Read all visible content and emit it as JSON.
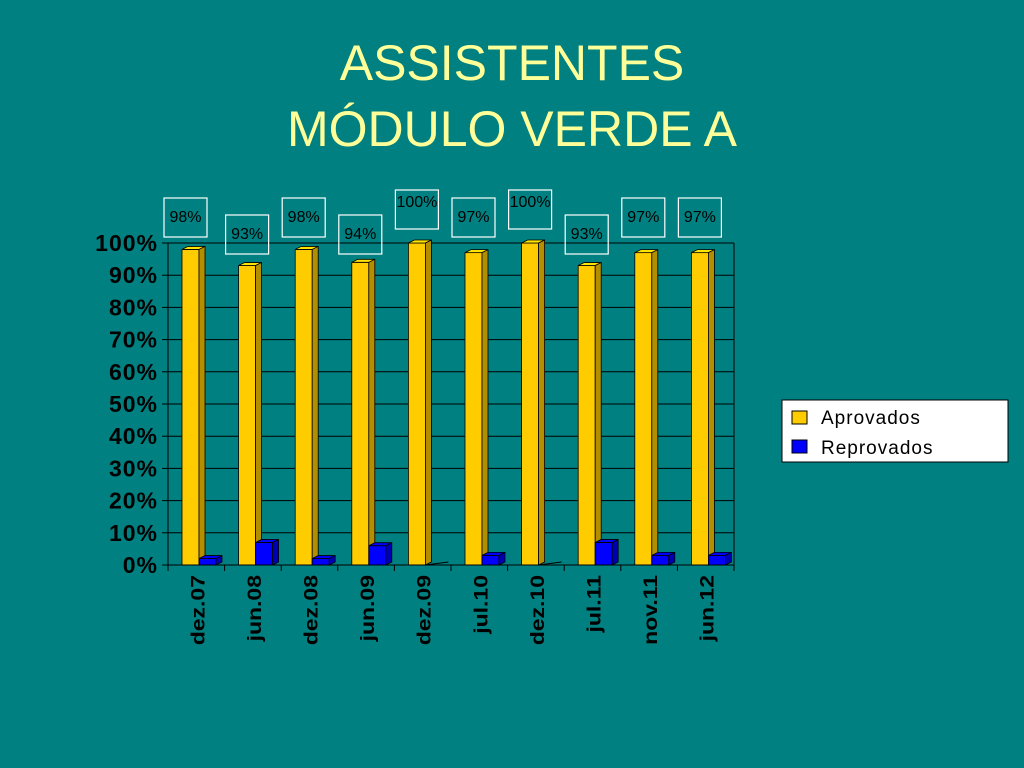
{
  "slide": {
    "title_line1": "ASSISTENTES",
    "title_line2": "MÓDULO VERDE A"
  },
  "colors": {
    "background": "#008080",
    "title": "#ffff99",
    "aprovados": "#ffcc00",
    "reprovados": "#0000ff"
  },
  "chart_data": {
    "type": "bar",
    "categories": [
      "dez.07",
      "jun.08",
      "dez.08",
      "jun.09",
      "dez.09",
      "jul.10",
      "dez.10",
      "jul.11",
      "nov.11",
      "jun.12"
    ],
    "series": [
      {
        "name": "Aprovados",
        "values": [
          98,
          93,
          98,
          94,
          100,
          97,
          100,
          93,
          97,
          97
        ]
      },
      {
        "name": "Reprovados",
        "values": [
          2,
          7,
          2,
          6,
          0,
          3,
          0,
          7,
          3,
          3
        ]
      }
    ],
    "data_labels": [
      "98%",
      "93%",
      "98%",
      "94%",
      "100%",
      "97%",
      "100%",
      "93%",
      "97%",
      "97%"
    ],
    "ylim": [
      0,
      100
    ],
    "yticks": [
      "0%",
      "10%",
      "20%",
      "30%",
      "40%",
      "50%",
      "60%",
      "70%",
      "80%",
      "90%",
      "100%"
    ],
    "legend_position": "right",
    "grid": true
  }
}
